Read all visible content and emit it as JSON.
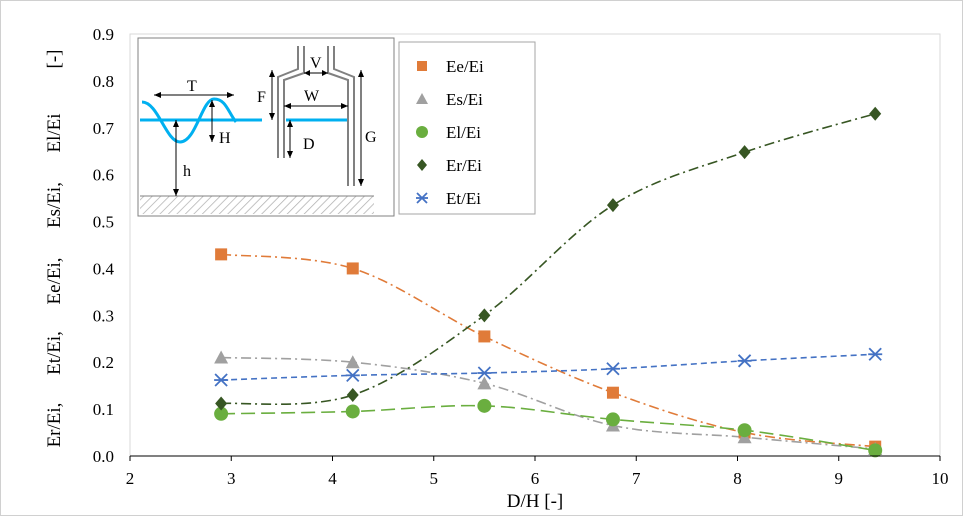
{
  "chart_data": {
    "type": "scatter",
    "xlabel": "D/H [-]",
    "ylabel_parts": [
      "Er/Ei,",
      "Et/Ei,",
      "Ee/Ei,",
      "Es/Ei,",
      "El/Ei",
      "[-]"
    ],
    "xlim": [
      2,
      10
    ],
    "ylim": [
      0,
      0.9
    ],
    "x_ticks": [
      "2",
      "3",
      "4",
      "5",
      "6",
      "7",
      "8",
      "9",
      "10"
    ],
    "y_ticks": [
      "0.0",
      "0.1",
      "0.2",
      "0.3",
      "0.4",
      "0.5",
      "0.6",
      "0.7",
      "0.8",
      "0.9"
    ],
    "legend_placement": "top-center",
    "grid": false,
    "x": [
      2.9,
      4.2,
      5.5,
      6.77,
      8.07,
      9.36
    ],
    "series": [
      {
        "name": "Ee/Ei",
        "marker": "square",
        "color": "#E07B39",
        "line": "dash-dot",
        "values": [
          0.43,
          0.4,
          0.255,
          0.135,
          0.05,
          0.02
        ]
      },
      {
        "name": "Es/Ei",
        "marker": "triangle",
        "color": "#A0A0A0",
        "line": "dash-dot",
        "values": [
          0.21,
          0.2,
          0.155,
          0.065,
          0.04,
          0.015
        ]
      },
      {
        "name": "El/Ei",
        "marker": "circle",
        "color": "#6AAE3F",
        "line": "long-dash",
        "values": [
          0.09,
          0.095,
          0.107,
          0.078,
          0.055,
          0.012
        ]
      },
      {
        "name": "Er/Ei",
        "marker": "diamond",
        "color": "#375623",
        "line": "dash-dot",
        "values": [
          0.112,
          0.13,
          0.3,
          0.535,
          0.648,
          0.73
        ]
      },
      {
        "name": "Et/Ei",
        "marker": "asterisk",
        "color": "#4472C4",
        "line": "dash",
        "values": [
          0.162,
          0.172,
          0.177,
          0.186,
          0.203,
          0.217
        ]
      }
    ]
  },
  "inset_labels": {
    "T": "T",
    "H": "H",
    "h": "h",
    "F": "F",
    "V": "V",
    "W": "W",
    "D": "D",
    "G": "G"
  }
}
